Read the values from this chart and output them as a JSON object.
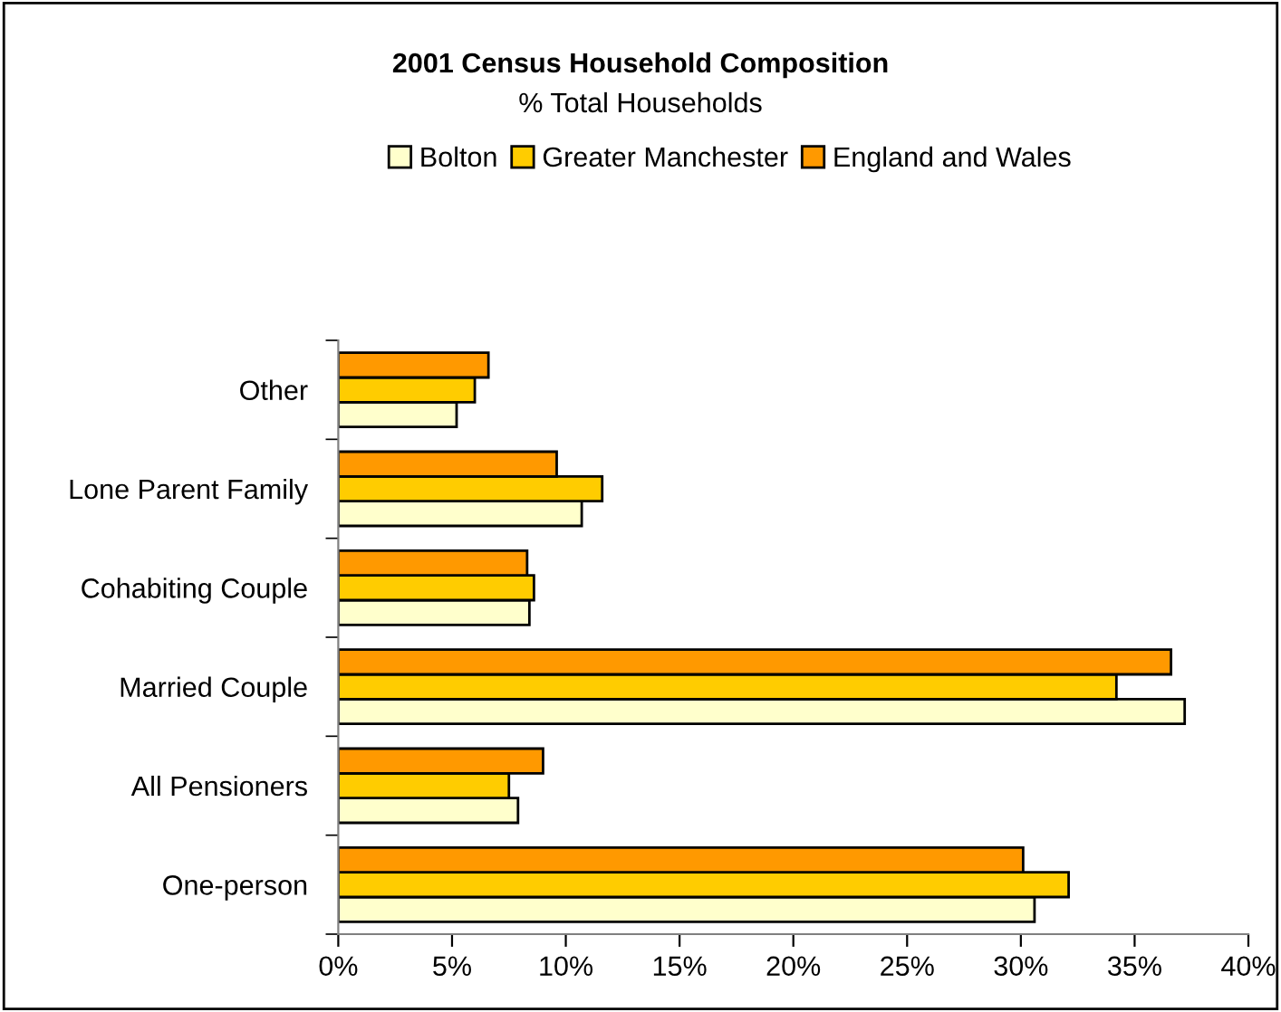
{
  "chart_data": {
    "type": "bar",
    "orientation": "horizontal",
    "title": "2001 Census Household Composition",
    "subtitle": "% Total Households",
    "categories": [
      "Other",
      "Lone Parent Family",
      "Cohabiting Couple",
      "Married Couple",
      "All Pensioners",
      "One-person"
    ],
    "series": [
      {
        "name": "Bolton",
        "color": "#ffffcc",
        "values": [
          5.2,
          10.7,
          8.4,
          37.2,
          7.9,
          30.6
        ]
      },
      {
        "name": "Greater Manchester",
        "color": "#ffcc00",
        "values": [
          6.0,
          11.6,
          8.6,
          34.2,
          7.5,
          32.1
        ]
      },
      {
        "name": "England and Wales",
        "color": "#ff9900",
        "values": [
          6.6,
          9.6,
          8.3,
          36.6,
          9.0,
          30.1
        ]
      }
    ],
    "xlim": [
      0,
      40
    ],
    "xticks": [
      {
        "value": 0,
        "label": "0%"
      },
      {
        "value": 5,
        "label": "5%"
      },
      {
        "value": 10,
        "label": "10%"
      },
      {
        "value": 15,
        "label": "15%"
      },
      {
        "value": 20,
        "label": "20%"
      },
      {
        "value": 25,
        "label": "25%"
      },
      {
        "value": 30,
        "label": "30%"
      },
      {
        "value": 35,
        "label": "35%"
      },
      {
        "value": 40,
        "label": "40%"
      }
    ],
    "legend": "top",
    "grid": false
  }
}
